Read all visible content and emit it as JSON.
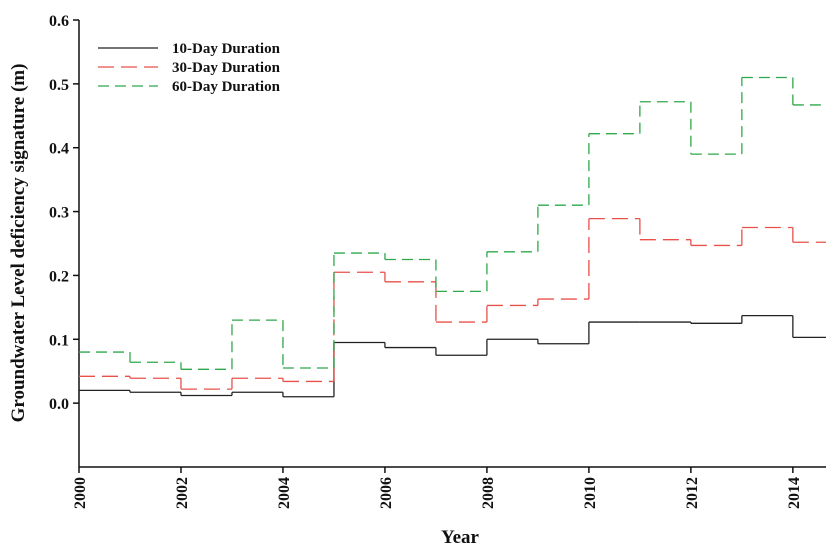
{
  "chart_data": {
    "type": "step",
    "x_label": "Year",
    "y_label": "Groundwater Level deficiency signature (m)",
    "x": [
      2000,
      2001,
      2002,
      2003,
      2004,
      2005,
      2006,
      2007,
      2008,
      2009,
      2010,
      2011,
      2012,
      2013,
      2014
    ],
    "series": [
      {
        "name": "10-Day Duration",
        "color": "#222222",
        "dash": "solid",
        "values": [
          0.02,
          0.017,
          0.012,
          0.017,
          0.01,
          0.095,
          0.087,
          0.075,
          0.1,
          0.093,
          0.127,
          0.127,
          0.125,
          0.137,
          0.103
        ]
      },
      {
        "name": "30-Day Duration",
        "color": "#e8504a",
        "dash": "long",
        "values": [
          0.042,
          0.039,
          0.022,
          0.039,
          0.034,
          0.205,
          0.19,
          0.127,
          0.153,
          0.163,
          0.289,
          0.256,
          0.247,
          0.275,
          0.252
        ]
      },
      {
        "name": "60-Day Duration",
        "color": "#2fa84a",
        "dash": "medium",
        "values": [
          0.08,
          0.064,
          0.053,
          0.13,
          0.055,
          0.235,
          0.225,
          0.175,
          0.237,
          0.31,
          0.422,
          0.472,
          0.39,
          0.51,
          0.467
        ]
      }
    ],
    "xlim": [
      2000,
      2014.65
    ],
    "xticks": [
      2000,
      2002,
      2004,
      2006,
      2008,
      2010,
      2012,
      2014
    ],
    "ylim": [
      -0.1,
      0.6
    ],
    "yticks": [
      {
        "value": 0,
        "label": "0.0"
      },
      0.1,
      0.2,
      0.3,
      0.4,
      0.5,
      0.6
    ],
    "legend": "top-left"
  }
}
